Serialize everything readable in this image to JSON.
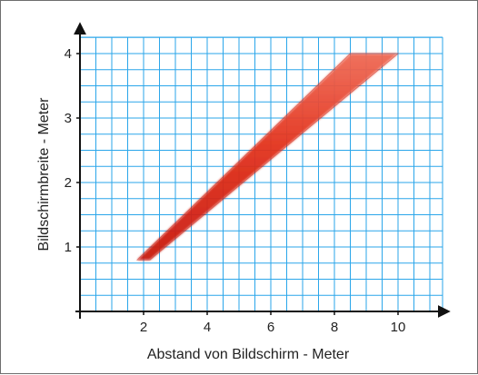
{
  "chart_data": {
    "type": "area",
    "title": "",
    "xlabel": "Abstand von Bildschirm - Meter",
    "ylabel": "Bildschirmbreite - Meter",
    "xlim": [
      0,
      11
    ],
    "ylim": [
      0,
      4.2
    ],
    "grid": true,
    "x_grid_step": 0.5,
    "y_grid_step": 0.25,
    "x_ticks": [
      2,
      4,
      6,
      8,
      10
    ],
    "y_ticks": [
      1,
      2,
      3,
      4
    ],
    "x_tick_labels": [
      "2",
      "4",
      "6",
      "8",
      "10"
    ],
    "y_tick_labels": [
      "1",
      "2",
      "3",
      "4"
    ],
    "band": {
      "upper_edge": [
        {
          "x": 1.8,
          "y": 0.8
        },
        {
          "x": 8.5,
          "y": 4.0
        }
      ],
      "lower_edge": [
        {
          "x": 2.2,
          "y": 0.8
        },
        {
          "x": 10.0,
          "y": 4.0
        }
      ]
    }
  },
  "colors": {
    "grid": "#2aa6ea",
    "axis": "#111111",
    "band": "#e83a24",
    "band_dark": "#c8190e",
    "background": "#ffffff"
  }
}
